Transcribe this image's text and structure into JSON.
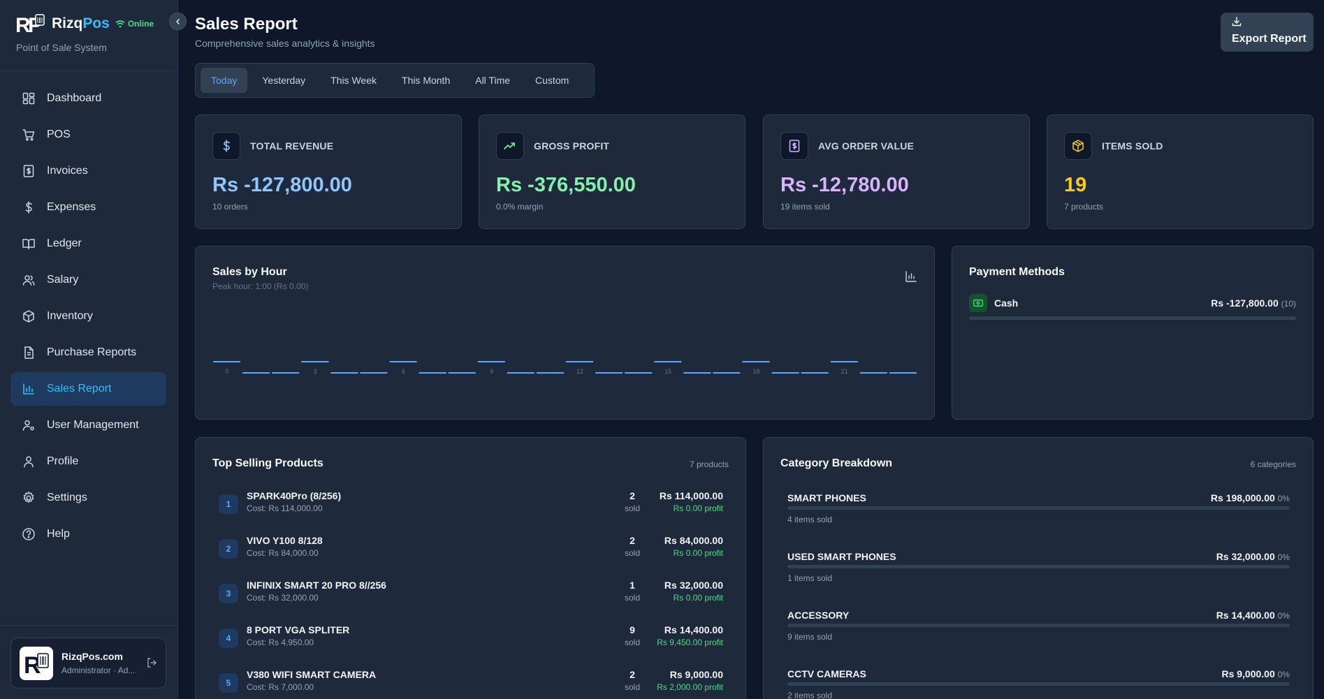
{
  "brand": {
    "name_main": "Rizq",
    "name_accent": "Pos",
    "status": "Online",
    "tagline": "Point of Sale System"
  },
  "nav": [
    {
      "label": "Dashboard",
      "icon": "dashboard-icon"
    },
    {
      "label": "POS",
      "icon": "cart-icon"
    },
    {
      "label": "Invoices",
      "icon": "invoice-icon"
    },
    {
      "label": "Expenses",
      "icon": "dollar-icon"
    },
    {
      "label": "Ledger",
      "icon": "book-icon"
    },
    {
      "label": "Salary",
      "icon": "users-icon"
    },
    {
      "label": "Inventory",
      "icon": "box-icon"
    },
    {
      "label": "Purchase Reports",
      "icon": "document-icon"
    },
    {
      "label": "Sales Report",
      "icon": "bar-chart-icon",
      "active": true
    },
    {
      "label": "User Management",
      "icon": "user-gear-icon"
    },
    {
      "label": "Profile",
      "icon": "user-icon"
    },
    {
      "label": "Settings",
      "icon": "gear-icon"
    },
    {
      "label": "Help",
      "icon": "help-icon"
    }
  ],
  "user": {
    "name": "RizqPos.com",
    "role": "Administrator · Ad..."
  },
  "header": {
    "title": "Sales Report",
    "subtitle": "Comprehensive sales analytics & insights",
    "export_label": "Export Report"
  },
  "tabs": [
    {
      "label": "Today",
      "active": true
    },
    {
      "label": "Yesterday"
    },
    {
      "label": "This Week"
    },
    {
      "label": "This Month"
    },
    {
      "label": "All Time"
    },
    {
      "label": "Custom"
    }
  ],
  "stats": [
    {
      "label": "TOTAL REVENUE",
      "value": "Rs -127,800.00",
      "sub": "10 orders",
      "color": "#93c5fd",
      "icon": "dollar-icon"
    },
    {
      "label": "GROSS PROFIT",
      "value": "Rs -376,550.00",
      "sub": "0.0% margin",
      "color": "#86efac",
      "icon": "trending-up-icon"
    },
    {
      "label": "AVG ORDER VALUE",
      "value": "Rs -12,780.00",
      "sub": "19 items sold",
      "color": "#d8b4fe",
      "icon": "receipt-icon"
    },
    {
      "label": "ITEMS SOLD",
      "value": "19",
      "sub": "7 products",
      "color": "#facc15",
      "icon": "package-icon"
    }
  ],
  "sales_by_hour": {
    "title": "Sales by Hour",
    "subtitle": "Peak hour: 1:00 (Rs 0.00)",
    "tick_labels": [
      "0",
      "3",
      "6",
      "9",
      "12",
      "15",
      "18",
      "21"
    ]
  },
  "chart_data": {
    "type": "bar",
    "title": "Sales by Hour",
    "categories": [
      "0",
      "1",
      "2",
      "3",
      "4",
      "5",
      "6",
      "7",
      "8",
      "9",
      "10",
      "11",
      "12",
      "13",
      "14",
      "15",
      "16",
      "17",
      "18",
      "19",
      "20",
      "21",
      "22",
      "23"
    ],
    "values": [
      0,
      0,
      0,
      0,
      0,
      0,
      0,
      0,
      0,
      0,
      0,
      0,
      0,
      0,
      0,
      0,
      0,
      0,
      0,
      0,
      0,
      0,
      0,
      0
    ],
    "color": "#60a5fa"
  },
  "payment_methods": {
    "title": "Payment Methods",
    "items": [
      {
        "name": "Cash",
        "amount": "Rs -127,800.00",
        "count": "(10)"
      }
    ]
  },
  "top_products": {
    "title": "Top Selling Products",
    "count_label": "7 products",
    "sold_label": "sold",
    "items": [
      {
        "rank": "1",
        "name": "SPARK40Pro (8/256)",
        "cost": "Cost: Rs 114,000.00",
        "qty": "2",
        "revenue": "Rs 114,000.00",
        "profit": "Rs 0.00 profit"
      },
      {
        "rank": "2",
        "name": "VIVO Y100 8/128",
        "cost": "Cost: Rs 84,000.00",
        "qty": "2",
        "revenue": "Rs 84,000.00",
        "profit": "Rs 0.00 profit"
      },
      {
        "rank": "3",
        "name": "INFINIX SMART 20 PRO 8//256",
        "cost": "Cost: Rs 32,000.00",
        "qty": "1",
        "revenue": "Rs 32,000.00",
        "profit": "Rs 0.00 profit"
      },
      {
        "rank": "4",
        "name": "8 PORT VGA SPLITER",
        "cost": "Cost: Rs 4,950.00",
        "qty": "9",
        "revenue": "Rs 14,400.00",
        "profit": "Rs 9,450.00 profit"
      },
      {
        "rank": "5",
        "name": "V380 WIFI SMART CAMERA",
        "cost": "Cost: Rs 7,000.00",
        "qty": "2",
        "revenue": "Rs 9,000.00",
        "profit": "Rs 2,000.00 profit"
      }
    ]
  },
  "categories": {
    "title": "Category Breakdown",
    "count_label": "6 categories",
    "items": [
      {
        "name": "SMART PHONES",
        "amount": "Rs 198,000.00",
        "pct": "0%",
        "sub": "4 items sold"
      },
      {
        "name": "USED SMART PHONES",
        "amount": "Rs 32,000.00",
        "pct": "0%",
        "sub": "1 items sold"
      },
      {
        "name": "ACCESSORY",
        "amount": "Rs 14,400.00",
        "pct": "0%",
        "sub": "9 items sold"
      },
      {
        "name": "CCTV CAMERAS",
        "amount": "Rs 9,000.00",
        "pct": "0%",
        "sub": "2 items sold"
      }
    ]
  }
}
